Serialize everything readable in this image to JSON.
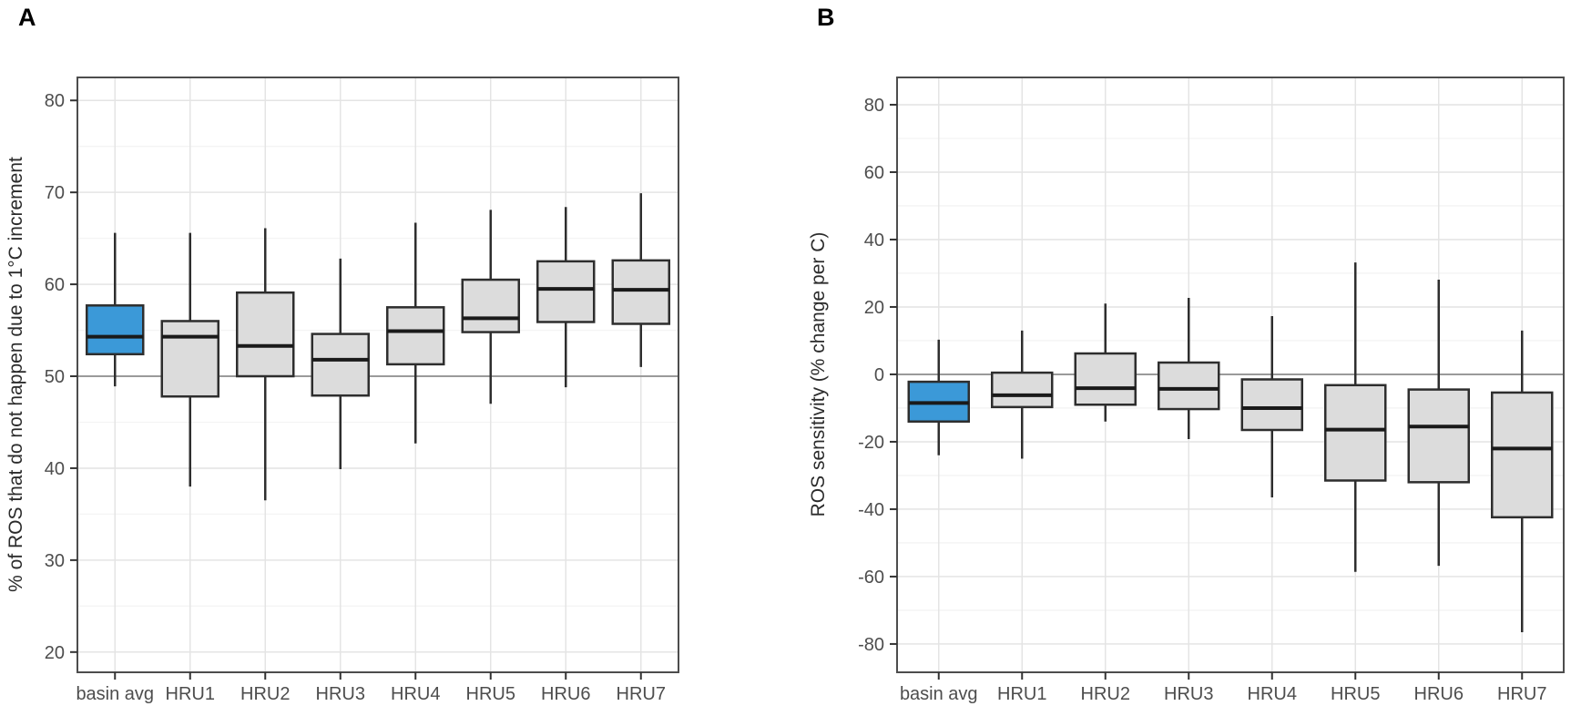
{
  "figure": {
    "styles": {
      "background": "#ffffff",
      "box_fill_default": "#dcdcdc",
      "box_fill_highlight": "#3b99d8",
      "box_stroke": "#2e2e2e",
      "median_color": "#1a1a1a",
      "whisker_color": "#2e2e2e",
      "grid_major": "#e4e4e4",
      "grid_minor": "#f4f4f4",
      "reference_line": "#9a9a9a",
      "panel_border": "#4d4d4d",
      "tick_label": "#4d4d4d",
      "axis_title": "#2b2b2b",
      "panel_label": "#000000"
    }
  },
  "chart_data": [
    {
      "type": "boxplot",
      "panel_label": "A",
      "title": "",
      "xlabel": "",
      "ylabel": "% of ROS that do not happen due to 1°C increment",
      "categories": [
        "basin avg",
        "HRU1",
        "HRU2",
        "HRU3",
        "HRU4",
        "HRU5",
        "HRU6",
        "HRU7"
      ],
      "y_ticks": [
        20,
        30,
        40,
        50,
        60,
        70,
        80
      ],
      "y_minor_ticks": [
        25,
        35,
        45,
        55,
        65,
        75
      ],
      "ylim": [
        17.8,
        82.5
      ],
      "reference_line_y": 50,
      "grid": true,
      "legend": "none",
      "highlight_category": "basin avg",
      "series": [
        {
          "category": "basin avg",
          "whisker_low": 48.9,
          "q1": 52.4,
          "median": 54.3,
          "q3": 57.7,
          "whisker_high": 65.6,
          "fill": "#3b99d8"
        },
        {
          "category": "HRU1",
          "whisker_low": 38.0,
          "q1": 47.8,
          "median": 54.3,
          "q3": 56.0,
          "whisker_high": 65.6,
          "fill": "#dcdcdc"
        },
        {
          "category": "HRU2",
          "whisker_low": 36.5,
          "q1": 50.0,
          "median": 53.3,
          "q3": 59.1,
          "whisker_high": 66.1,
          "fill": "#dcdcdc"
        },
        {
          "category": "HRU3",
          "whisker_low": 39.9,
          "q1": 47.9,
          "median": 51.8,
          "q3": 54.6,
          "whisker_high": 62.8,
          "fill": "#dcdcdc"
        },
        {
          "category": "HRU4",
          "whisker_low": 42.7,
          "q1": 51.3,
          "median": 54.9,
          "q3": 57.5,
          "whisker_high": 66.7,
          "fill": "#dcdcdc"
        },
        {
          "category": "HRU5",
          "whisker_low": 47.0,
          "q1": 54.8,
          "median": 56.3,
          "q3": 60.5,
          "whisker_high": 68.1,
          "fill": "#dcdcdc"
        },
        {
          "category": "HRU6",
          "whisker_low": 48.8,
          "q1": 55.9,
          "median": 59.5,
          "q3": 62.5,
          "whisker_high": 68.4,
          "fill": "#dcdcdc"
        },
        {
          "category": "HRU7",
          "whisker_low": 51.0,
          "q1": 55.7,
          "median": 59.4,
          "q3": 62.6,
          "whisker_high": 69.9,
          "fill": "#dcdcdc"
        }
      ]
    },
    {
      "type": "boxplot",
      "panel_label": "B",
      "title": "",
      "xlabel": "",
      "ylabel": "ROS sensitivity (% change per C)",
      "categories": [
        "basin avg",
        "HRU1",
        "HRU2",
        "HRU3",
        "HRU4",
        "HRU5",
        "HRU6",
        "HRU7"
      ],
      "y_ticks": [
        -80,
        -60,
        -40,
        -20,
        0,
        20,
        40,
        60,
        80
      ],
      "y_minor_ticks": [
        -70,
        -50,
        -30,
        -10,
        10,
        30,
        50,
        70
      ],
      "ylim": [
        -88.4,
        88.1
      ],
      "reference_line_y": 0,
      "grid": true,
      "legend": "none",
      "highlight_category": "basin avg",
      "series": [
        {
          "category": "basin avg",
          "whisker_low": -24.0,
          "q1": -14.0,
          "median": -8.5,
          "q3": -2.2,
          "whisker_high": 10.3,
          "fill": "#3b99d8"
        },
        {
          "category": "HRU1",
          "whisker_low": -25.0,
          "q1": -9.7,
          "median": -6.2,
          "q3": 0.5,
          "whisker_high": 13.0,
          "fill": "#dcdcdc"
        },
        {
          "category": "HRU2",
          "whisker_low": -14.0,
          "q1": -9.0,
          "median": -4.1,
          "q3": 6.2,
          "whisker_high": 21.0,
          "fill": "#dcdcdc"
        },
        {
          "category": "HRU3",
          "whisker_low": -19.2,
          "q1": -10.3,
          "median": -4.3,
          "q3": 3.5,
          "whisker_high": 22.7,
          "fill": "#dcdcdc"
        },
        {
          "category": "HRU4",
          "whisker_low": -36.5,
          "q1": -16.5,
          "median": -10.0,
          "q3": -1.5,
          "whisker_high": 17.3,
          "fill": "#dcdcdc"
        },
        {
          "category": "HRU5",
          "whisker_low": -58.6,
          "q1": -31.5,
          "median": -16.4,
          "q3": -3.2,
          "whisker_high": 33.2,
          "fill": "#dcdcdc"
        },
        {
          "category": "HRU6",
          "whisker_low": -56.8,
          "q1": -32.0,
          "median": -15.5,
          "q3": -4.5,
          "whisker_high": 28.1,
          "fill": "#dcdcdc"
        },
        {
          "category": "HRU7",
          "whisker_low": -76.5,
          "q1": -42.4,
          "median": -22.0,
          "q3": -5.4,
          "whisker_high": 13.0,
          "fill": "#dcdcdc"
        }
      ]
    }
  ]
}
